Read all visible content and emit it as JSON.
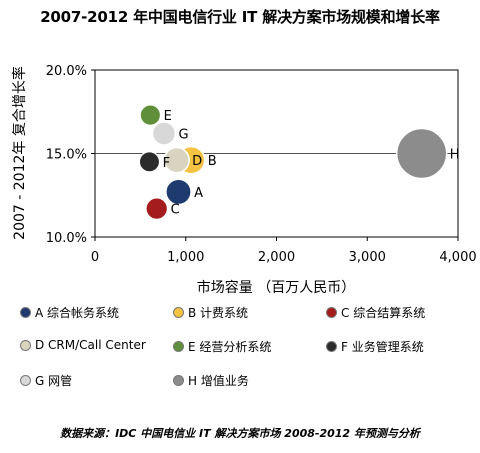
{
  "title": "2007-2012 年中国电信行业 IT 解决方案市场规模和增长率",
  "source": "数据来源：IDC 中国电信业 IT 解决方案市场 2008-2012 年预测与分析",
  "chart_data": {
    "type": "bubble",
    "xlabel": "市场容量 （百万人民币）",
    "ylabel": "2007 - 2012年 复合增长率",
    "xlim": [
      0,
      4000
    ],
    "ylim": [
      0.1,
      0.2
    ],
    "xticks": [
      0,
      1000,
      2000,
      3000,
      4000
    ],
    "xtick_labels": [
      "0",
      "1,000",
      "2,000",
      "3,000",
      "4,000"
    ],
    "yticks": [
      0.1,
      0.15,
      0.2
    ],
    "ytick_labels": [
      "10.0%",
      "15.0%",
      "20.0%"
    ],
    "reference_line_y": 0.15,
    "points": [
      {
        "label": "A",
        "x": 920,
        "y": 0.127,
        "size": 920,
        "color": "#1f3a6e",
        "legend": "A 综合帐务系统",
        "label_side": "right"
      },
      {
        "label": "B",
        "x": 1060,
        "y": 0.146,
        "size": 1060,
        "color": "#f5c242",
        "legend": "B 计费系统",
        "label_side": "right"
      },
      {
        "label": "C",
        "x": 680,
        "y": 0.117,
        "size": 680,
        "color": "#a51c1c",
        "legend": "C 综合结算系统",
        "label_side": "right"
      },
      {
        "label": "D",
        "x": 900,
        "y": 0.146,
        "size": 900,
        "color": "#d9d4bf",
        "legend": "D CRM/Call Center",
        "label_side": "right"
      },
      {
        "label": "E",
        "x": 610,
        "y": 0.173,
        "size": 610,
        "color": "#5f8f3a",
        "legend": "E 经营分析系统",
        "label_side": "right"
      },
      {
        "label": "F",
        "x": 600,
        "y": 0.145,
        "size": 600,
        "color": "#2b2b2b",
        "legend": "F 业务管理系统",
        "label_side": "right"
      },
      {
        "label": "G",
        "x": 760,
        "y": 0.162,
        "size": 760,
        "color": "#d8d8d8",
        "legend": "G 网管",
        "label_side": "right"
      },
      {
        "label": "H",
        "x": 3600,
        "y": 0.15,
        "size": 3600,
        "color": "#8c8c8c",
        "legend": "H 增值业务",
        "label_side": "right"
      }
    ]
  }
}
